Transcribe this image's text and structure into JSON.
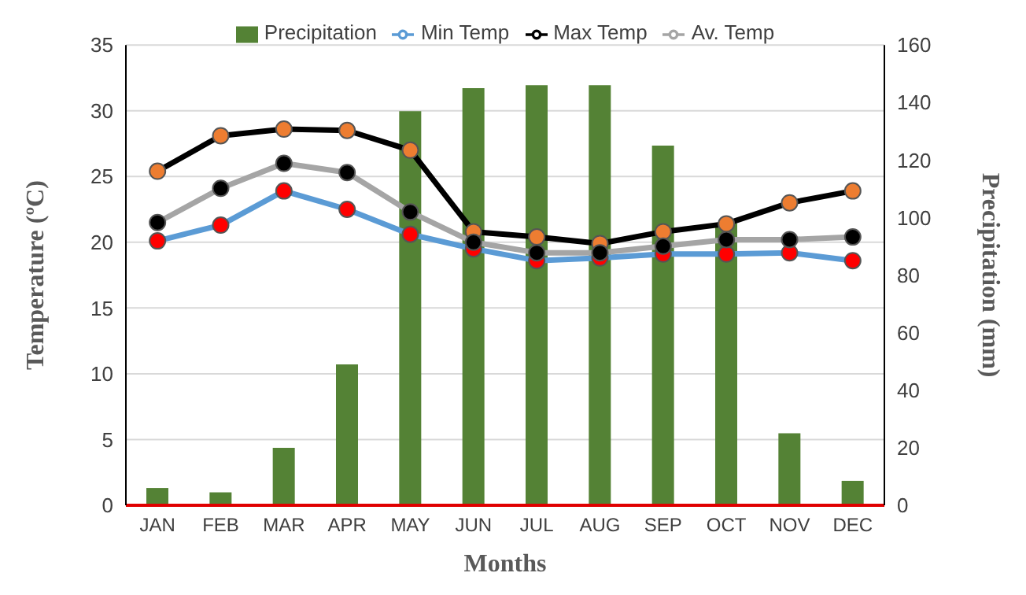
{
  "chart_data": {
    "type": "bar",
    "xlabel": "Months",
    "ylabel": "Temperature (ºC)",
    "y2label": "Precipitation (mm)",
    "categories": [
      "JAN",
      "FEB",
      "MAR",
      "APR",
      "MAY",
      "JUN",
      "JUL",
      "AUG",
      "SEP",
      "OCT",
      "NOV",
      "DEC"
    ],
    "series": [
      {
        "name": "Precipitation",
        "axis": "y2",
        "color": "#548235",
        "values": [
          6,
          4.5,
          20,
          49,
          137,
          145,
          146,
          146,
          125,
          98,
          25,
          8.5
        ]
      },
      {
        "name": "Min Temp",
        "type": "line",
        "color": "#5b9bd5",
        "values": [
          20.1,
          21.3,
          23.9,
          22.5,
          20.6,
          19.5,
          18.6,
          18.8,
          19.1,
          19.1,
          19.2,
          18.6
        ]
      },
      {
        "name": "Max Temp",
        "type": "line",
        "color": "#000000",
        "values": [
          25.4,
          28.1,
          28.6,
          28.5,
          27.0,
          20.8,
          20.4,
          19.9,
          20.8,
          21.4,
          23.0,
          23.9
        ]
      },
      {
        "name": "Av. Temp",
        "type": "line",
        "color": "#a5a5a5",
        "values": [
          21.5,
          24.1,
          26.0,
          25.3,
          22.3,
          20.0,
          19.2,
          19.2,
          19.7,
          20.2,
          20.2,
          20.4
        ]
      }
    ],
    "ylim": [
      0,
      35
    ],
    "yticks": [
      0,
      5,
      10,
      15,
      20,
      25,
      30,
      35
    ],
    "y2lim": [
      0,
      160
    ],
    "y2ticks": [
      0,
      20,
      40,
      60,
      80,
      100,
      120,
      140,
      160
    ],
    "grid": "y",
    "legend": "top",
    "marker": "circle"
  }
}
